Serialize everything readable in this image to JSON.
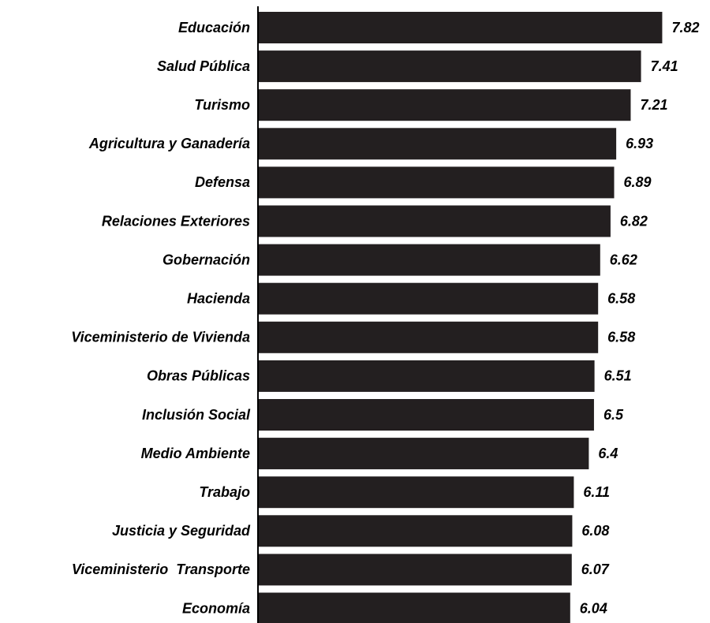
{
  "chart_data": {
    "type": "hbar",
    "categories": [
      "Educación",
      "Salud Pública",
      "Turismo",
      "Agricultura y Ganadería",
      "Defensa",
      "Relaciones Exteriores",
      "Gobernación",
      "Hacienda",
      "Viceministerio de Vivienda",
      "Obras Públicas",
      "Inclusión Social",
      "Medio Ambiente",
      "Trabajo",
      "Justicia y Seguridad",
      "Viceministerio  Transporte",
      "Economía"
    ],
    "values": [
      7.82,
      7.41,
      7.21,
      6.93,
      6.89,
      6.82,
      6.62,
      6.58,
      6.58,
      6.51,
      6.5,
      6.4,
      6.11,
      6.08,
      6.07,
      6.04
    ],
    "color": "#231f20",
    "xlim": [
      0,
      8.5
    ]
  }
}
